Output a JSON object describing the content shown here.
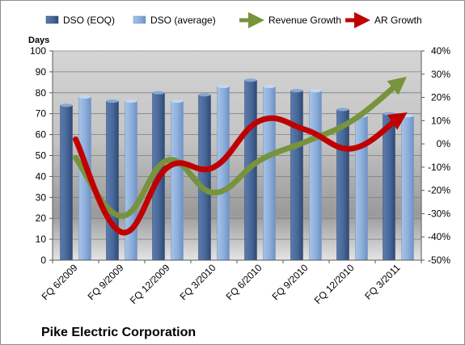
{
  "chart_data": {
    "type": "bar",
    "company": "Pike Electric Corporation",
    "ylabel_left": "Days",
    "categories": [
      "FQ 6/2009",
      "FQ 9/2009",
      "FQ 12/2009",
      "FQ 3/2010",
      "FQ 6/2010",
      "FQ 9/2010",
      "FQ 12/2010",
      "FQ 3/2011"
    ],
    "ylim_left": [
      0,
      100
    ],
    "left_ticks": [
      "0",
      "10",
      "20",
      "30",
      "40",
      "50",
      "60",
      "70",
      "80",
      "90",
      "100"
    ],
    "ylim_right": [
      -50,
      40
    ],
    "right_ticks": [
      "-50%",
      "-40%",
      "-30%",
      "-20%",
      "-10%",
      "0%",
      "10%",
      "20%",
      "30%",
      "40%"
    ],
    "bar_series": [
      {
        "name": "DSO (EOQ)",
        "color": "#4f6d9c",
        "values": [
          74,
          76,
          80,
          79,
          86,
          81,
          72,
          70
        ]
      },
      {
        "name": "DSO (average)",
        "color": "#8fb0dc",
        "values": [
          78,
          76,
          76,
          83,
          83,
          81,
          69,
          69
        ]
      }
    ],
    "line_series": [
      {
        "name": "Revenue Growth",
        "color": "#77933c",
        "values": [
          -6,
          -31,
          -7,
          -21,
          -7,
          1,
          10,
          26
        ]
      },
      {
        "name": "AR Growth",
        "color": "#c00000",
        "values": [
          2,
          -38,
          -10,
          -10,
          10,
          6,
          -2,
          11
        ]
      }
    ],
    "grid": true,
    "legend_position": "top"
  }
}
